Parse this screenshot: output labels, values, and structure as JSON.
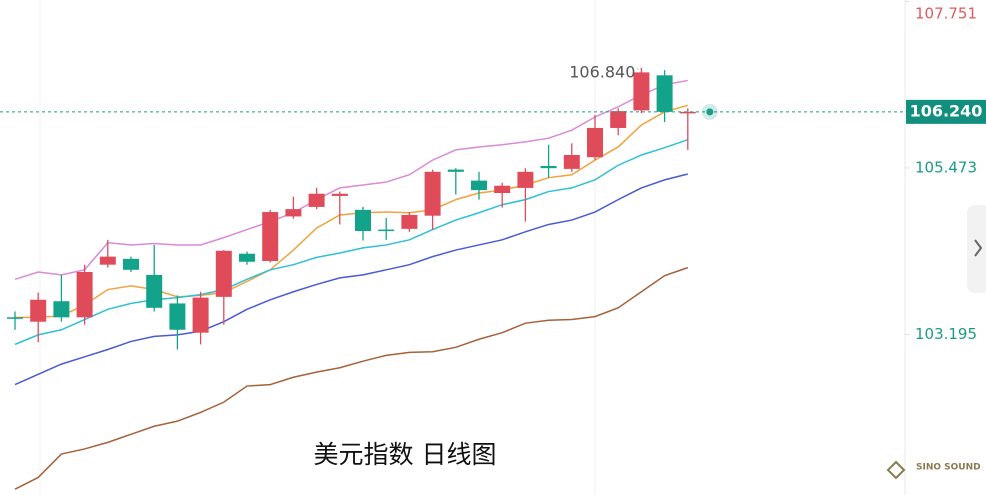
{
  "chart_data": {
    "type": "candlestick",
    "title": "美元指数  日线图",
    "watermark": "SINO SOUND",
    "up_color": "#e04b5a",
    "down_color": "#12a38a",
    "ylim": [
      101.0,
      107.77
    ],
    "yticks": [
      {
        "value": 103.195,
        "label": "103.195"
      },
      {
        "value": 105.473,
        "label": "105.473"
      },
      {
        "value": 107.751,
        "label": "107.751"
      }
    ],
    "last_price": {
      "value": 106.24,
      "label": "106.240"
    },
    "open": [
      103.43,
      103.37,
      103.65,
      103.43,
      104.15,
      104.23,
      104.01,
      103.62,
      103.22,
      103.71,
      104.3,
      104.2,
      104.81,
      104.94,
      105.09,
      104.9,
      104.63,
      104.64,
      104.82,
      105.45,
      105.3,
      105.13,
      105.2,
      105.5,
      105.46,
      105.62,
      106.02,
      106.26,
      106.74,
      106.22
    ],
    "close": [
      103.42,
      103.67,
      103.43,
      104.05,
      104.26,
      104.08,
      103.56,
      103.26,
      103.7,
      104.34,
      104.19,
      104.87,
      104.91,
      105.12,
      105.12,
      104.61,
      104.61,
      104.83,
      105.42,
      105.42,
      105.17,
      105.23,
      105.42,
      105.47,
      105.65,
      106.02,
      106.25,
      106.78,
      106.24,
      106.24
    ],
    "high": [
      103.51,
      103.77,
      104.01,
      104.15,
      104.49,
      104.26,
      104.42,
      103.73,
      103.78,
      104.35,
      104.33,
      104.9,
      105.08,
      105.2,
      105.15,
      104.94,
      104.79,
      104.87,
      105.45,
      105.47,
      105.42,
      105.27,
      105.47,
      105.79,
      105.81,
      106.2,
      106.29,
      106.84,
      106.81,
      106.29
    ],
    "low": [
      103.26,
      103.09,
      103.37,
      103.33,
      104.11,
      104.05,
      103.51,
      102.99,
      103.06,
      103.33,
      104.15,
      104.18,
      104.78,
      104.91,
      104.7,
      104.48,
      104.49,
      104.6,
      104.63,
      105.11,
      105.04,
      104.93,
      104.74,
      105.34,
      105.42,
      105.58,
      105.92,
      106.22,
      106.1,
      105.72
    ],
    "high_labels": [
      null,
      null,
      null,
      null,
      null,
      null,
      null,
      null,
      null,
      null,
      null,
      null,
      null,
      null,
      null,
      null,
      null,
      null,
      null,
      null,
      null,
      null,
      null,
      null,
      null,
      null,
      null,
      "106.840",
      null,
      null
    ],
    "series": [
      {
        "color": "#d98ad8",
        "values": [
          103.95,
          104.05,
          104.01,
          104.08,
          104.45,
          104.42,
          104.44,
          104.42,
          104.42,
          104.52,
          104.63,
          104.74,
          104.86,
          105.04,
          105.2,
          105.24,
          105.28,
          105.38,
          105.58,
          105.72,
          105.76,
          105.79,
          105.83,
          105.88,
          105.99,
          106.17,
          106.31,
          106.47,
          106.61,
          106.67
        ]
      },
      {
        "color": "#f2a23e",
        "values": [
          103.43,
          103.43,
          103.45,
          103.6,
          103.81,
          103.86,
          103.81,
          103.71,
          103.73,
          103.77,
          103.92,
          104.08,
          104.35,
          104.65,
          104.83,
          104.86,
          104.87,
          104.86,
          104.9,
          105.04,
          105.13,
          105.17,
          105.24,
          105.34,
          105.38,
          105.58,
          105.76,
          106.06,
          106.24,
          106.33
        ]
      },
      {
        "color": "#2fbfd6",
        "values": [
          103.06,
          103.19,
          103.26,
          103.4,
          103.54,
          103.62,
          103.67,
          103.7,
          103.74,
          103.81,
          103.95,
          104.08,
          104.15,
          104.25,
          104.31,
          104.38,
          104.42,
          104.49,
          104.63,
          104.76,
          104.86,
          104.97,
          105.04,
          105.15,
          105.2,
          105.31,
          105.51,
          105.65,
          105.75,
          105.86
        ]
      },
      {
        "color": "#4a5ad6",
        "values": [
          102.51,
          102.65,
          102.79,
          102.89,
          102.99,
          103.1,
          103.17,
          103.19,
          103.24,
          103.37,
          103.54,
          103.67,
          103.78,
          103.88,
          103.97,
          104.01,
          104.08,
          104.15,
          104.26,
          104.35,
          104.42,
          104.49,
          104.6,
          104.7,
          104.76,
          104.87,
          105.04,
          105.2,
          105.31,
          105.39
        ]
      },
      {
        "color": "#a5623a",
        "values": [
          101.08,
          101.24,
          101.56,
          101.63,
          101.72,
          101.83,
          101.94,
          102.01,
          102.13,
          102.27,
          102.49,
          102.51,
          102.61,
          102.68,
          102.74,
          102.83,
          102.91,
          102.95,
          102.96,
          103.02,
          103.13,
          103.22,
          103.35,
          103.39,
          103.4,
          103.44,
          103.56,
          103.78,
          104.0,
          104.11
        ]
      }
    ]
  }
}
